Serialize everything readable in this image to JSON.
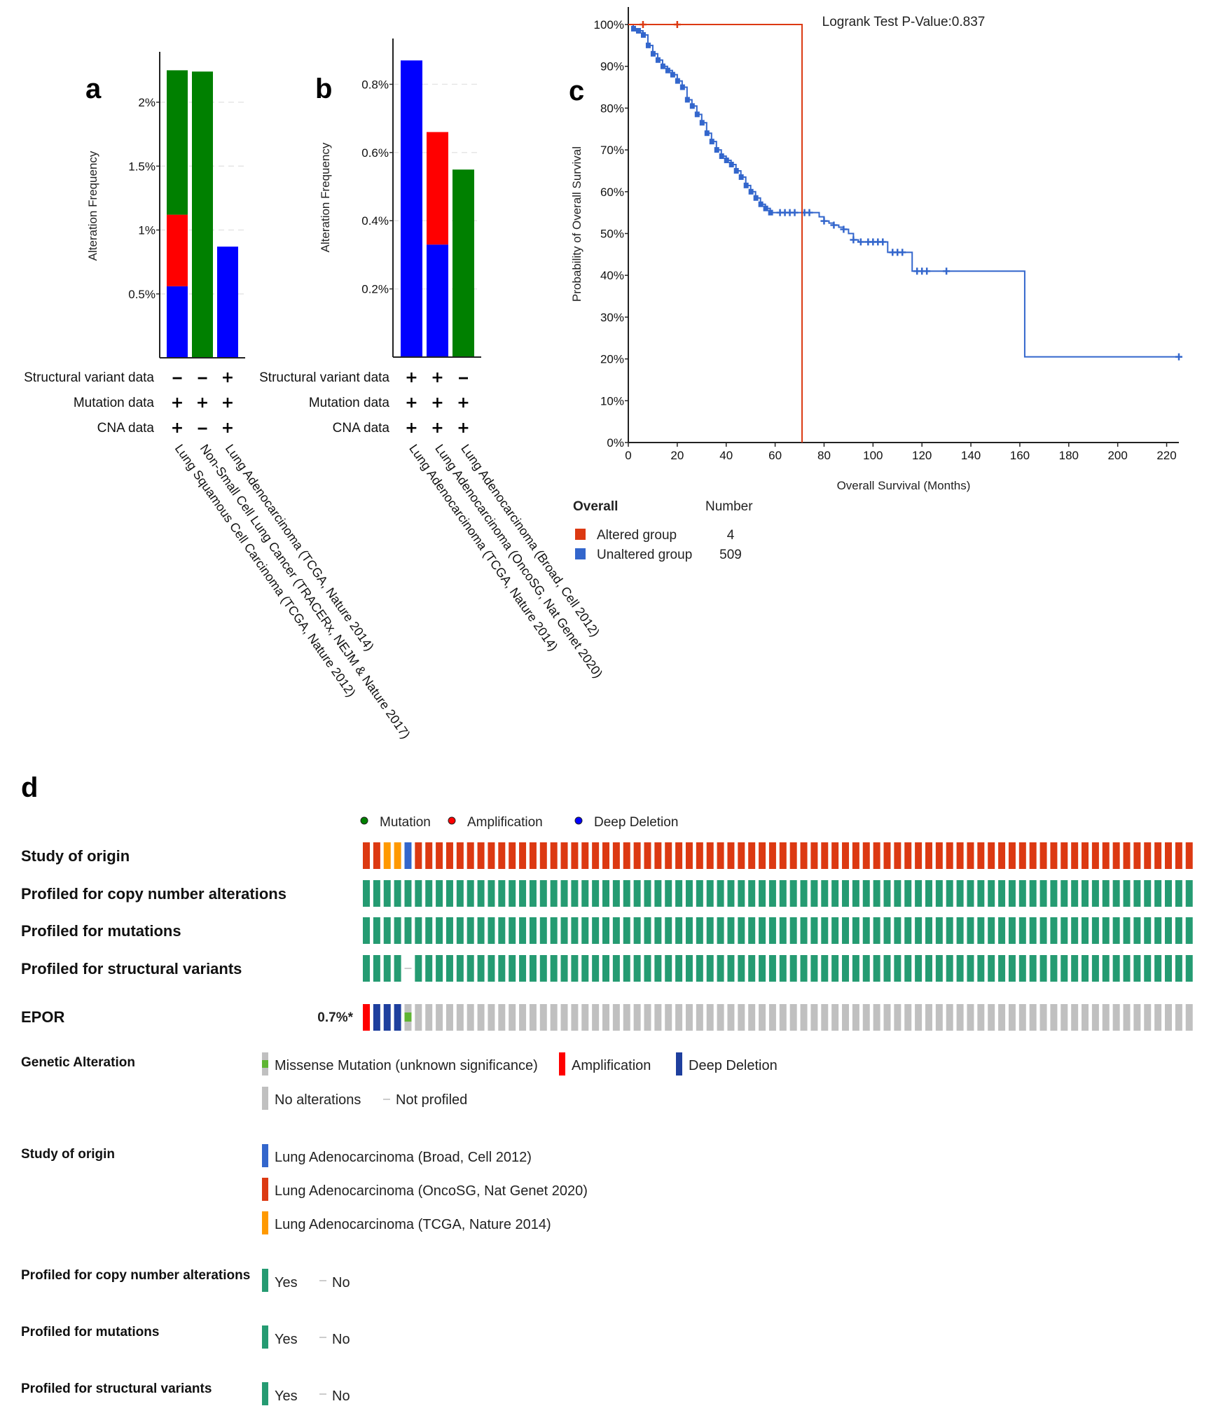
{
  "panels": {
    "a": "a",
    "b": "b",
    "c": "c",
    "d": "d"
  },
  "chart_data": [
    {
      "id": "a",
      "type": "bar",
      "stacked": true,
      "ylabel": "Alteration Frequency",
      "yticks": [
        "0.5%",
        "1%",
        "1.5%",
        "2%"
      ],
      "ytick_values": [
        0.5,
        1.0,
        1.5,
        2.0
      ],
      "ylim": [
        0,
        2.45
      ],
      "grid": true,
      "categories": [
        "Lung Squamous Cell Carcinoma (TCGA, Nature 2012)",
        "Non-Small Cell Lung Cancer (TRACERx, NEJM & Nature 2017)",
        "Lung Adenocarcinoma (TCGA, Nature 2014)"
      ],
      "series": [
        {
          "name": "Deep Deletion",
          "color": "#0000ff",
          "values": [
            0.56,
            0,
            0.87
          ]
        },
        {
          "name": "Amplification",
          "color": "#ff0000",
          "values": [
            0.56,
            0,
            0
          ]
        },
        {
          "name": "Mutation",
          "color": "#008000",
          "values": [
            1.13,
            2.24,
            0
          ]
        }
      ],
      "table": {
        "rows": [
          "Structural variant data",
          "Mutation data",
          "CNA data"
        ],
        "values": [
          [
            "-",
            "-",
            "+"
          ],
          [
            "+",
            "+",
            "+"
          ],
          [
            "+",
            "-",
            "+"
          ]
        ]
      }
    },
    {
      "id": "b",
      "type": "bar",
      "stacked": true,
      "ylabel": "Alteration Frequency",
      "yticks": [
        "0.2%",
        "0.4%",
        "0.6%",
        "0.8%"
      ],
      "ytick_values": [
        0.2,
        0.4,
        0.6,
        0.8
      ],
      "ylim": [
        0,
        0.92
      ],
      "grid": true,
      "categories": [
        "Lung Adenocarcinoma (TCGA, Nature 2014)",
        "Lung Adenocarcinoma (OncoSG, Nat Genet 2020)",
        "Lung Adenocarcinoma (Broad, Cell 2012)"
      ],
      "series": [
        {
          "name": "Deep Deletion",
          "color": "#0000ff",
          "values": [
            0.87,
            0.33,
            0
          ]
        },
        {
          "name": "Amplification",
          "color": "#ff0000",
          "values": [
            0,
            0.33,
            0
          ]
        },
        {
          "name": "Mutation",
          "color": "#008000",
          "values": [
            0,
            0,
            0.55
          ]
        }
      ],
      "table": {
        "rows": [
          "Structural variant data",
          "Mutation data",
          "CNA data"
        ],
        "values": [
          [
            "+",
            "+",
            "-"
          ],
          [
            "+",
            "+",
            "+"
          ],
          [
            "+",
            "+",
            "+"
          ]
        ]
      }
    },
    {
      "id": "c",
      "type": "line",
      "subtype": "kaplan-meier",
      "title": "Logrank Test P-Value:0.837",
      "xlabel": "Overall Survival (Months)",
      "ylabel": "Probability of Overall Survival",
      "xlim": [
        0,
        225
      ],
      "ylim": [
        0,
        100
      ],
      "xticks": [
        0,
        20,
        40,
        60,
        80,
        100,
        120,
        140,
        160,
        180,
        200,
        220
      ],
      "yticks": [
        "0%",
        "10%",
        "20%",
        "30%",
        "40%",
        "50%",
        "60%",
        "70%",
        "80%",
        "90%",
        "100%"
      ],
      "ytick_values": [
        0,
        10,
        20,
        30,
        40,
        50,
        60,
        70,
        80,
        90,
        100
      ],
      "legend": {
        "header": "Overall",
        "number_header": "Number",
        "position": "bottom-left"
      },
      "series": [
        {
          "name": "Altered group",
          "number": 4,
          "color": "#dc3912",
          "x": [
            0,
            71,
            71
          ],
          "y": [
            100,
            100,
            0
          ],
          "censored_x": [
            6,
            20
          ]
        },
        {
          "name": "Unaltered group",
          "number": 509,
          "color": "#3366cc",
          "x": [
            0,
            2,
            4,
            6,
            8,
            10,
            12,
            14,
            16,
            18,
            20,
            22,
            24,
            26,
            28,
            30,
            32,
            34,
            36,
            38,
            40,
            42,
            44,
            46,
            48,
            50,
            52,
            54,
            56,
            58,
            60,
            62,
            64,
            66,
            68,
            70,
            72,
            74,
            76,
            78,
            80,
            82,
            84,
            86,
            88,
            90,
            92,
            94,
            96,
            98,
            100,
            102,
            104,
            106,
            108,
            110,
            112,
            114,
            116,
            118,
            120,
            130,
            140,
            150,
            162,
            162,
            225
          ],
          "y": [
            100,
            99,
            98.5,
            97.5,
            95,
            93,
            91.5,
            90,
            89,
            88,
            86.5,
            85,
            82,
            80.5,
            78.5,
            76.5,
            74,
            72,
            70,
            68.5,
            67.5,
            66.5,
            65,
            63.5,
            61.5,
            60,
            58.5,
            57,
            56,
            55,
            55,
            55,
            55,
            55,
            55,
            55,
            55,
            55,
            55,
            54,
            53,
            52.5,
            52,
            51.5,
            51,
            50,
            48.5,
            48,
            48,
            48,
            48,
            48,
            48,
            45.5,
            45.5,
            45.5,
            45.5,
            45.5,
            41,
            41,
            41,
            41,
            41,
            41,
            41,
            20.5,
            20.5
          ],
          "censored_x": [
            62,
            64,
            66,
            68,
            72,
            74,
            80,
            84,
            88,
            92,
            95,
            98,
            100,
            102,
            104,
            108,
            110,
            112,
            118,
            120,
            122,
            130,
            225
          ]
        }
      ]
    }
  ],
  "oncoprint": {
    "legend_top": [
      {
        "label": "Mutation",
        "color": "#008000"
      },
      {
        "label": "Amplification",
        "color": "#ff0000"
      },
      {
        "label": "Deep Deletion",
        "color": "#0000ff"
      }
    ],
    "track_labels": {
      "study": "Study of origin",
      "cna": "Profiled for copy number alterations",
      "mut": "Profiled for mutations",
      "sv": "Profiled for structural variants"
    },
    "gene": {
      "name": "EPOR",
      "frequency": "0.7%*"
    },
    "num_samples": 80,
    "study_first": [
      "oncosg",
      "oncosg",
      "tcga",
      "tcga",
      "broad"
    ],
    "study_default": "oncosg",
    "sv_not_profiled_index": 4,
    "alterations_first": [
      "amp",
      "del",
      "del",
      "del",
      "missense"
    ],
    "colors": {
      "broad": "#3366cc",
      "oncosg": "#dc3912",
      "tcga": "#ff9900",
      "profiled": "#259b72",
      "amp": "#ff0000",
      "del": "#1e3f9e",
      "missense": "#5fb533",
      "none": "#c0c0c0"
    },
    "legends": {
      "genetic_alteration": {
        "title": "Genetic Alteration",
        "items": [
          {
            "label": "Missense Mutation (unknown significance)",
            "type": "missense"
          },
          {
            "label": "Amplification",
            "type": "amp"
          },
          {
            "label": "Deep Deletion",
            "type": "del"
          },
          {
            "label": "No alterations",
            "type": "none"
          },
          {
            "label": "Not profiled",
            "type": "notprofiled"
          }
        ]
      },
      "study_of_origin": {
        "title": "Study of origin",
        "items": [
          {
            "label": "Lung Adenocarcinoma (Broad, Cell 2012)",
            "color": "#3366cc"
          },
          {
            "label": "Lung Adenocarcinoma (OncoSG, Nat Genet 2020)",
            "color": "#dc3912"
          },
          {
            "label": "Lung Adenocarcinoma (TCGA, Nature 2014)",
            "color": "#ff9900"
          }
        ]
      },
      "profiled": [
        {
          "title": "Profiled for copy number alterations",
          "yes": "Yes",
          "no": "No"
        },
        {
          "title": "Profiled for mutations",
          "yes": "Yes",
          "no": "No"
        },
        {
          "title": "Profiled for structural variants",
          "yes": "Yes",
          "no": "No"
        }
      ]
    }
  }
}
